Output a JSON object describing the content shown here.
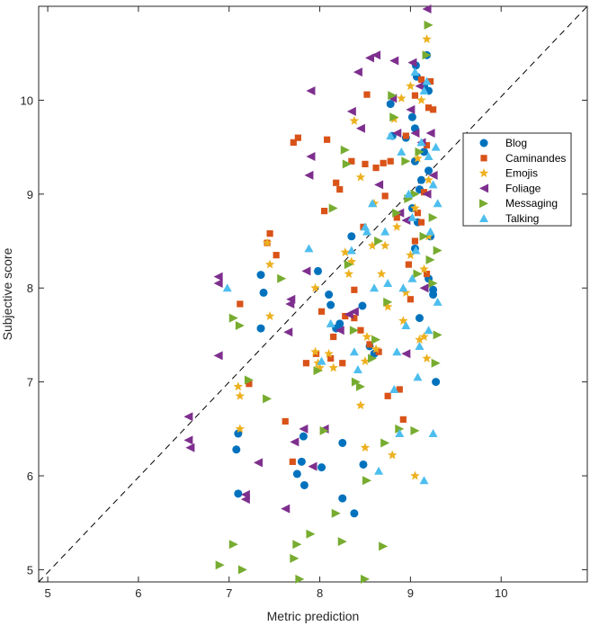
{
  "chart_data": {
    "type": "scatter",
    "xlabel": "Metric prediction",
    "ylabel": "Subjective score",
    "xlim": [
      4.9,
      10.95
    ],
    "ylim": [
      4.87,
      11.0
    ],
    "xticks": [
      "5",
      "6",
      "7",
      "8",
      "9",
      "10"
    ],
    "yticks": [
      "5",
      "6",
      "7",
      "8",
      "9",
      "10"
    ],
    "grid": false,
    "legend_position": "right",
    "reference_line": {
      "style": "dashed",
      "from": [
        4.9,
        4.87
      ],
      "to": [
        11.0,
        11.0
      ]
    },
    "series": [
      {
        "name": "Blog",
        "marker": "circle",
        "color": "#0072BD",
        "points": [
          [
            7.1,
            6.45
          ],
          [
            7.08,
            6.28
          ],
          [
            7.1,
            5.81
          ],
          [
            7.35,
            8.14
          ],
          [
            7.38,
            7.95
          ],
          [
            7.35,
            7.57
          ],
          [
            7.75,
            6.02
          ],
          [
            7.8,
            6.15
          ],
          [
            7.82,
            6.42
          ],
          [
            7.83,
            5.9
          ],
          [
            7.98,
            8.18
          ],
          [
            8.02,
            6.09
          ],
          [
            8.1,
            7.93
          ],
          [
            8.12,
            7.82
          ],
          [
            8.18,
            7.57
          ],
          [
            8.22,
            7.62
          ],
          [
            8.25,
            6.35
          ],
          [
            8.25,
            5.76
          ],
          [
            8.35,
            8.55
          ],
          [
            8.38,
            5.6
          ],
          [
            8.47,
            7.81
          ],
          [
            8.48,
            6.12
          ],
          [
            8.55,
            7.38
          ],
          [
            8.6,
            7.3
          ],
          [
            8.78,
            9.96
          ],
          [
            8.8,
            9.62
          ],
          [
            8.95,
            9.6
          ],
          [
            9.02,
            9.82
          ],
          [
            9.05,
            9.35
          ],
          [
            9.02,
            8.85
          ],
          [
            9.05,
            8.42
          ],
          [
            9.06,
            10.37
          ],
          [
            9.07,
            10.25
          ],
          [
            9.1,
            9.05
          ],
          [
            9.1,
            7.68
          ],
          [
            9.12,
            9.15
          ],
          [
            9.15,
            10.15
          ],
          [
            9.18,
            10.48
          ],
          [
            9.2,
            10.1
          ],
          [
            9.2,
            9.25
          ],
          [
            9.22,
            8.55
          ],
          [
            9.25,
            7.93
          ],
          [
            9.25,
            7.98
          ],
          [
            9.28,
            7.0
          ],
          [
            9.05,
            9.7
          ],
          [
            9.15,
            9.45
          ],
          [
            9.08,
            8.7
          ],
          [
            9.2,
            8.1
          ]
        ]
      },
      {
        "name": "Caminandes",
        "marker": "square",
        "color": "#D95319",
        "points": [
          [
            7.12,
            7.83
          ],
          [
            7.22,
            6.98
          ],
          [
            7.45,
            8.58
          ],
          [
            7.42,
            8.48
          ],
          [
            7.52,
            8.35
          ],
          [
            7.62,
            6.58
          ],
          [
            7.7,
            6.15
          ],
          [
            7.71,
            9.55
          ],
          [
            7.76,
            9.6
          ],
          [
            7.85,
            7.2
          ],
          [
            7.96,
            7.3
          ],
          [
            8.02,
            7.75
          ],
          [
            8.05,
            8.82
          ],
          [
            8.08,
            9.58
          ],
          [
            8.12,
            7.25
          ],
          [
            8.15,
            7.48
          ],
          [
            8.18,
            9.12
          ],
          [
            8.22,
            9.05
          ],
          [
            8.25,
            7.2
          ],
          [
            8.28,
            7.7
          ],
          [
            8.35,
            9.35
          ],
          [
            8.38,
            7.98
          ],
          [
            8.38,
            7.68
          ],
          [
            8.45,
            7.55
          ],
          [
            8.48,
            8.65
          ],
          [
            8.5,
            9.32
          ],
          [
            8.52,
            10.06
          ],
          [
            8.55,
            7.4
          ],
          [
            8.62,
            9.28
          ],
          [
            8.65,
            7.32
          ],
          [
            8.7,
            9.33
          ],
          [
            8.72,
            8.98
          ],
          [
            8.75,
            6.85
          ],
          [
            8.78,
            9.35
          ],
          [
            8.85,
            8.75
          ],
          [
            8.88,
            6.92
          ],
          [
            8.92,
            6.6
          ],
          [
            8.95,
            9.62
          ],
          [
            8.98,
            8.25
          ],
          [
            9.0,
            7.88
          ],
          [
            9.05,
            8.5
          ],
          [
            9.08,
            8.8
          ],
          [
            9.12,
            8.7
          ],
          [
            9.15,
            9.02
          ],
          [
            9.18,
            9.52
          ],
          [
            9.2,
            9.92
          ],
          [
            9.22,
            10.2
          ],
          [
            9.25,
            9.9
          ],
          [
            9.12,
            10.22
          ],
          [
            9.18,
            8.15
          ],
          [
            9.05,
            10.05
          ]
        ]
      },
      {
        "name": "Emojis",
        "marker": "star",
        "color": "#EDB120",
        "points": [
          [
            7.1,
            6.95
          ],
          [
            7.12,
            6.85
          ],
          [
            7.12,
            6.5
          ],
          [
            7.45,
            8.25
          ],
          [
            7.42,
            8.48
          ],
          [
            7.45,
            7.7
          ],
          [
            7.95,
            8.0
          ],
          [
            7.95,
            7.32
          ],
          [
            7.98,
            7.2
          ],
          [
            8.0,
            7.15
          ],
          [
            8.1,
            7.3
          ],
          [
            8.15,
            7.15
          ],
          [
            8.28,
            8.38
          ],
          [
            8.32,
            8.15
          ],
          [
            8.35,
            8.28
          ],
          [
            8.38,
            9.78
          ],
          [
            8.45,
            9.18
          ],
          [
            8.45,
            6.75
          ],
          [
            8.5,
            6.3
          ],
          [
            8.5,
            7.22
          ],
          [
            8.52,
            7.48
          ],
          [
            8.58,
            8.45
          ],
          [
            8.6,
            8.9
          ],
          [
            8.62,
            7.35
          ],
          [
            8.68,
            8.15
          ],
          [
            8.72,
            8.45
          ],
          [
            8.75,
            7.8
          ],
          [
            8.8,
            6.22
          ],
          [
            8.82,
            9.8
          ],
          [
            8.85,
            8.65
          ],
          [
            8.9,
            10.02
          ],
          [
            8.92,
            7.65
          ],
          [
            8.95,
            7.95
          ],
          [
            9.0,
            10.15
          ],
          [
            9.0,
            8.35
          ],
          [
            9.05,
            8.85
          ],
          [
            9.08,
            9.38
          ],
          [
            9.1,
            7.45
          ],
          [
            9.12,
            10.0
          ],
          [
            9.15,
            7.48
          ],
          [
            9.18,
            10.65
          ],
          [
            9.18,
            7.25
          ],
          [
            9.2,
            8.55
          ],
          [
            9.2,
            9.15
          ],
          [
            9.05,
            6.0
          ],
          [
            9.15,
            8.2
          ]
        ]
      },
      {
        "name": "Foliage",
        "marker": "triangle-left",
        "color": "#7E2F8E",
        "points": [
          [
            6.55,
            6.63
          ],
          [
            6.55,
            6.38
          ],
          [
            6.57,
            6.3
          ],
          [
            6.88,
            8.12
          ],
          [
            6.88,
            8.05
          ],
          [
            6.88,
            7.28
          ],
          [
            7.18,
            5.8
          ],
          [
            7.18,
            5.75
          ],
          [
            7.32,
            6.14
          ],
          [
            7.62,
            5.65
          ],
          [
            7.65,
            7.53
          ],
          [
            7.67,
            7.83
          ],
          [
            7.68,
            7.88
          ],
          [
            7.72,
            6.36
          ],
          [
            7.82,
            6.5
          ],
          [
            7.85,
            8.18
          ],
          [
            7.92,
            6.1
          ],
          [
            7.9,
            10.1
          ],
          [
            7.88,
            9.2
          ],
          [
            7.9,
            9.4
          ],
          [
            8.05,
            6.5
          ],
          [
            8.22,
            7.55
          ],
          [
            8.32,
            7.72
          ],
          [
            8.35,
            9.88
          ],
          [
            8.38,
            7.75
          ],
          [
            8.42,
            10.3
          ],
          [
            8.45,
            9.7
          ],
          [
            8.55,
            10.45
          ],
          [
            8.62,
            10.48
          ],
          [
            8.65,
            9.1
          ],
          [
            8.8,
            10.02
          ],
          [
            8.82,
            10.42
          ],
          [
            8.85,
            9.65
          ],
          [
            8.88,
            8.8
          ],
          [
            8.95,
            8.72
          ],
          [
            9.0,
            9.9
          ],
          [
            9.05,
            9.65
          ],
          [
            9.12,
            9.55
          ],
          [
            9.15,
            8.0
          ],
          [
            9.18,
            11.0
          ],
          [
            9.22,
            9.65
          ],
          [
            9.25,
            9.2
          ],
          [
            9.02,
            10.4
          ],
          [
            9.1,
            10.15
          ],
          [
            9.18,
            9.0
          ],
          [
            8.95,
            7.3
          ]
        ]
      },
      {
        "name": "Messaging",
        "marker": "triangle-right",
        "color": "#77AC30",
        "points": [
          [
            6.9,
            5.05
          ],
          [
            7.05,
            5.27
          ],
          [
            7.15,
            5.0
          ],
          [
            7.05,
            7.68
          ],
          [
            7.12,
            7.6
          ],
          [
            7.22,
            7.02
          ],
          [
            7.42,
            6.82
          ],
          [
            7.58,
            8.1
          ],
          [
            7.72,
            5.12
          ],
          [
            7.75,
            5.27
          ],
          [
            7.78,
            4.9
          ],
          [
            7.9,
            5.38
          ],
          [
            7.98,
            7.12
          ],
          [
            8.05,
            6.48
          ],
          [
            8.15,
            8.85
          ],
          [
            8.18,
            5.6
          ],
          [
            8.25,
            5.3
          ],
          [
            8.28,
            9.47
          ],
          [
            8.3,
            9.32
          ],
          [
            8.32,
            8.25
          ],
          [
            8.38,
            7.55
          ],
          [
            8.4,
            7.0
          ],
          [
            8.45,
            6.95
          ],
          [
            8.5,
            4.9
          ],
          [
            8.52,
            5.95
          ],
          [
            8.58,
            7.25
          ],
          [
            8.62,
            7.45
          ],
          [
            8.65,
            8.5
          ],
          [
            8.7,
            5.25
          ],
          [
            8.72,
            6.35
          ],
          [
            8.75,
            7.85
          ],
          [
            8.8,
            10.05
          ],
          [
            8.82,
            9.82
          ],
          [
            8.85,
            8.8
          ],
          [
            8.88,
            6.5
          ],
          [
            8.95,
            9.35
          ],
          [
            8.98,
            8.95
          ],
          [
            9.05,
            9.0
          ],
          [
            9.08,
            8.15
          ],
          [
            9.1,
            9.45
          ],
          [
            9.15,
            8.55
          ],
          [
            9.18,
            10.48
          ],
          [
            9.2,
            10.8
          ],
          [
            9.22,
            8.3
          ],
          [
            9.25,
            8.05
          ],
          [
            9.28,
            7.2
          ],
          [
            9.3,
            8.4
          ],
          [
            9.3,
            7.5
          ],
          [
            9.05,
            6.48
          ],
          [
            9.25,
            8.75
          ]
        ]
      },
      {
        "name": "Talking",
        "marker": "triangle-up",
        "color": "#4DBEEE",
        "points": [
          [
            6.98,
            8.0
          ],
          [
            7.88,
            8.42
          ],
          [
            8.02,
            7.22
          ],
          [
            8.12,
            7.62
          ],
          [
            8.35,
            8.4
          ],
          [
            8.38,
            7.32
          ],
          [
            8.42,
            7.13
          ],
          [
            8.5,
            8.65
          ],
          [
            8.52,
            8.6
          ],
          [
            8.58,
            8.9
          ],
          [
            8.6,
            8.0
          ],
          [
            8.65,
            6.05
          ],
          [
            8.72,
            8.6
          ],
          [
            8.75,
            8.05
          ],
          [
            8.78,
            9.62
          ],
          [
            8.82,
            6.92
          ],
          [
            8.85,
            7.32
          ],
          [
            8.88,
            6.45
          ],
          [
            8.9,
            9.45
          ],
          [
            8.92,
            8.0
          ],
          [
            8.95,
            7.6
          ],
          [
            8.98,
            9.0
          ],
          [
            9.02,
            8.75
          ],
          [
            9.05,
            10.3
          ],
          [
            9.06,
            8.4
          ],
          [
            9.08,
            7.05
          ],
          [
            9.1,
            7.38
          ],
          [
            9.12,
            9.55
          ],
          [
            9.15,
            10.1
          ],
          [
            9.18,
            10.2
          ],
          [
            9.2,
            9.4
          ],
          [
            9.22,
            8.6
          ],
          [
            9.25,
            6.45
          ],
          [
            9.28,
            9.5
          ],
          [
            9.3,
            8.9
          ],
          [
            9.3,
            7.85
          ],
          [
            9.15,
            5.95
          ],
          [
            9.2,
            7.55
          ],
          [
            9.02,
            8.1
          ],
          [
            9.25,
            9.1
          ]
        ]
      }
    ]
  }
}
